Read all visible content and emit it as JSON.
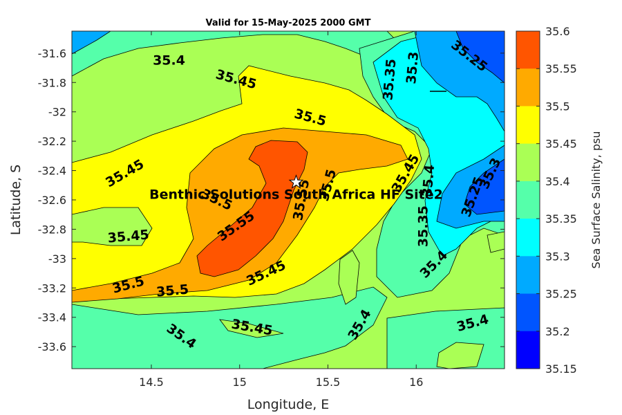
{
  "chart_data": {
    "type": "heatmap",
    "title": "Valid for 15-May-2025 2000 GMT",
    "xlabel": "Longitude, E",
    "ylabel": "Latitude, S",
    "colorbar_label": "Sea Surface Salinity, psu",
    "xlim": [
      14.05,
      16.5
    ],
    "ylim": [
      -33.75,
      -31.45
    ],
    "xticks": [
      14.5,
      15,
      15.5,
      16
    ],
    "xtick_labels": [
      "14.5",
      "15",
      "15.5",
      "16"
    ],
    "yticks": [
      -31.6,
      -31.8,
      -32,
      -32.2,
      -32.4,
      -32.6,
      -32.8,
      -33,
      -33.2,
      -33.4,
      -33.6
    ],
    "ytick_labels": [
      "-31.6",
      "-31.8",
      "-32",
      "-32.2",
      "-32.4",
      "-32.6",
      "-32.8",
      "-33",
      "-33.2",
      "-33.4",
      "-33.6"
    ],
    "colorbar_levels": [
      "35.6",
      "35.55",
      "35.5",
      "35.45",
      "35.4",
      "35.35",
      "35.3",
      "35.25",
      "35.2",
      "35.15"
    ],
    "colorbar_colors": [
      "#ff5500",
      "#ffaa00",
      "#ffff00",
      "#aaff55",
      "#55ffaa",
      "#00ffff",
      "#00aaff",
      "#0055ff",
      "#0000ff"
    ],
    "site_marker": {
      "lon": 15.32,
      "lat": -32.48,
      "label": "Benthic Solutions South Africa HF Site2"
    },
    "contour_labels": [
      {
        "text": "35.4",
        "lon": 14.6,
        "lat": -31.65,
        "angle": 0
      },
      {
        "text": "35.45",
        "lon": 14.35,
        "lat": -32.42,
        "angle": -30
      },
      {
        "text": "35.45",
        "lon": 14.98,
        "lat": -31.78,
        "angle": 15
      },
      {
        "text": "35.5",
        "lon": 15.4,
        "lat": -32.04,
        "angle": 15
      },
      {
        "text": "35.3",
        "lon": 15.98,
        "lat": -31.7,
        "angle": -85
      },
      {
        "text": "35.35",
        "lon": 15.85,
        "lat": -31.78,
        "angle": -85
      },
      {
        "text": "35.25",
        "lon": 16.3,
        "lat": -31.62,
        "angle": 38
      },
      {
        "text": "35.45",
        "lon": 14.37,
        "lat": -32.85,
        "angle": -5
      },
      {
        "text": "35.55",
        "lon": 14.98,
        "lat": -32.78,
        "angle": -35
      },
      {
        "text": "35.5",
        "lon": 14.87,
        "lat": -32.6,
        "angle": 25
      },
      {
        "text": "35.55",
        "lon": 15.35,
        "lat": -32.6,
        "angle": -80
      },
      {
        "text": "35.5",
        "lon": 15.5,
        "lat": -32.5,
        "angle": -75
      },
      {
        "text": "35.45",
        "lon": 15.94,
        "lat": -32.42,
        "angle": -60
      },
      {
        "text": "35.4",
        "lon": 16.07,
        "lat": -32.47,
        "angle": -85
      },
      {
        "text": "35.35",
        "lon": 16.04,
        "lat": -32.78,
        "angle": -90
      },
      {
        "text": "35.25",
        "lon": 16.32,
        "lat": -32.58,
        "angle": -70
      },
      {
        "text": "35.3",
        "lon": 16.42,
        "lat": -32.42,
        "angle": -65
      },
      {
        "text": "35.5",
        "lon": 14.37,
        "lat": -33.18,
        "angle": -15
      },
      {
        "text": "35.5",
        "lon": 14.62,
        "lat": -33.22,
        "angle": -5
      },
      {
        "text": "35.45",
        "lon": 15.15,
        "lat": -33.1,
        "angle": -25
      },
      {
        "text": "35.4",
        "lon": 16.1,
        "lat": -33.04,
        "angle": -45
      },
      {
        "text": "35.45",
        "lon": 15.07,
        "lat": -33.47,
        "angle": 10
      },
      {
        "text": "35.4",
        "lon": 14.67,
        "lat": -33.53,
        "angle": 35
      },
      {
        "text": "35.4",
        "lon": 15.68,
        "lat": -33.45,
        "angle": -60
      },
      {
        "text": "35.4",
        "lon": 16.32,
        "lat": -33.44,
        "angle": -15
      }
    ]
  }
}
